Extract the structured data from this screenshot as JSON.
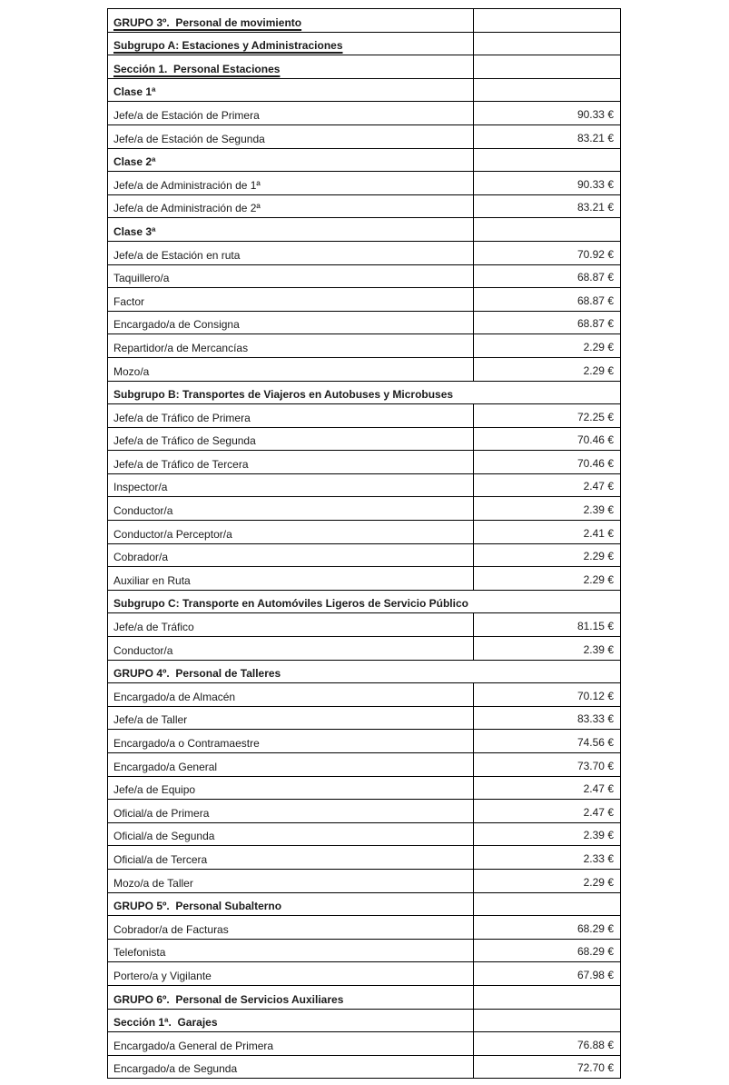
{
  "page": {
    "background_color": "#ffffff",
    "border_color": "#000000",
    "currency_symbol": "€"
  },
  "table": {
    "rows": [
      {
        "label": "GRUPO 3º.  Personal de movimiento",
        "value": "",
        "bold": true,
        "underline": true,
        "span_full": false
      },
      {
        "label": "Subgrupo A: Estaciones y Administraciones",
        "value": "",
        "bold": true,
        "underline": true,
        "span_full": false
      },
      {
        "label": "Sección 1.  Personal Estaciones",
        "value": "",
        "bold": true,
        "underline": true,
        "span_full": false
      },
      {
        "label": "Clase 1ª",
        "value": "",
        "bold": true,
        "underline": false,
        "span_full": false
      },
      {
        "label": "Jefe/a de Estación de Primera",
        "value": "90.33 €",
        "bold": false,
        "underline": false,
        "span_full": false
      },
      {
        "label": "Jefe/a de Estación de Segunda",
        "value": "83.21 €",
        "bold": false,
        "underline": false,
        "span_full": false
      },
      {
        "label": "Clase 2ª",
        "value": "",
        "bold": true,
        "underline": false,
        "span_full": false
      },
      {
        "label": "Jefe/a de Administración de 1ª",
        "value": "90.33 €",
        "bold": false,
        "underline": false,
        "span_full": false
      },
      {
        "label": "Jefe/a de Administración de 2ª",
        "value": "83.21 €",
        "bold": false,
        "underline": false,
        "span_full": false
      },
      {
        "label": "Clase 3ª",
        "value": "",
        "bold": true,
        "underline": false,
        "span_full": false
      },
      {
        "label": "Jefe/a de Estación en ruta",
        "value": "70.92 €",
        "bold": false,
        "underline": false,
        "span_full": false
      },
      {
        "label": "Taquillero/a",
        "value": "68.87 €",
        "bold": false,
        "underline": false,
        "span_full": false
      },
      {
        "label": "Factor",
        "value": "68.87 €",
        "bold": false,
        "underline": false,
        "span_full": false
      },
      {
        "label": "Encargado/a de Consigna",
        "value": "68.87 €",
        "bold": false,
        "underline": false,
        "span_full": false
      },
      {
        "label": "Repartidor/a de Mercancías",
        "value": "2.29 €",
        "bold": false,
        "underline": false,
        "span_full": false
      },
      {
        "label": "Mozo/a",
        "value": "2.29 €",
        "bold": false,
        "underline": false,
        "span_full": false
      },
      {
        "label": "Subgrupo B: Transportes de Viajeros en Autobuses y Microbuses",
        "value": "",
        "bold": true,
        "underline": false,
        "span_full": true
      },
      {
        "label": "Jefe/a de Tráfico de Primera",
        "value": "72.25 €",
        "bold": false,
        "underline": false,
        "span_full": false
      },
      {
        "label": "Jefe/a de Tráfico de Segunda",
        "value": "70.46 €",
        "bold": false,
        "underline": false,
        "span_full": false
      },
      {
        "label": "Jefe/a de Tráfico de Tercera",
        "value": "70.46 €",
        "bold": false,
        "underline": false,
        "span_full": false
      },
      {
        "label": "Inspector/a",
        "value": "2.47 €",
        "bold": false,
        "underline": false,
        "span_full": false
      },
      {
        "label": "Conductor/a",
        "value": "2.39 €",
        "bold": false,
        "underline": false,
        "span_full": false
      },
      {
        "label": "Conductor/a Perceptor/a",
        "value": "2.41 €",
        "bold": false,
        "underline": false,
        "span_full": false
      },
      {
        "label": "Cobrador/a",
        "value": "2.29 €",
        "bold": false,
        "underline": false,
        "span_full": false
      },
      {
        "label": "Auxiliar en Ruta",
        "value": "2.29 €",
        "bold": false,
        "underline": false,
        "span_full": false
      },
      {
        "label": "Subgrupo C: Transporte en Automóviles Ligeros de Servicio Público",
        "value": "",
        "bold": true,
        "underline": false,
        "span_full": true
      },
      {
        "label": "Jefe/a de Tráfico",
        "value": "81.15 €",
        "bold": false,
        "underline": false,
        "span_full": false
      },
      {
        "label": "Conductor/a",
        "value": "2.39 €",
        "bold": false,
        "underline": false,
        "span_full": false
      },
      {
        "label": "GRUPO 4º.  Personal de Talleres",
        "value": "",
        "bold": true,
        "underline": false,
        "span_full": true
      },
      {
        "label": "Encargado/a de Almacén",
        "value": "70.12 €",
        "bold": false,
        "underline": false,
        "span_full": false
      },
      {
        "label": "Jefe/a de Taller",
        "value": "83.33 €",
        "bold": false,
        "underline": false,
        "span_full": false
      },
      {
        "label": "Encargado/a o Contramaestre",
        "value": "74.56 €",
        "bold": false,
        "underline": false,
        "span_full": false
      },
      {
        "label": "Encargado/a General",
        "value": "73.70 €",
        "bold": false,
        "underline": false,
        "span_full": false
      },
      {
        "label": "Jefe/a de Equipo",
        "value": "2.47 €",
        "bold": false,
        "underline": false,
        "span_full": false
      },
      {
        "label": "Oficial/a de Primera",
        "value": "2.47 €",
        "bold": false,
        "underline": false,
        "span_full": false
      },
      {
        "label": "Oficial/a de Segunda",
        "value": "2.39 €",
        "bold": false,
        "underline": false,
        "span_full": false
      },
      {
        "label": "Oficial/a de Tercera",
        "value": "2.33 €",
        "bold": false,
        "underline": false,
        "span_full": false
      },
      {
        "label": "Mozo/a de Taller",
        "value": "2.29 €",
        "bold": false,
        "underline": false,
        "span_full": false
      },
      {
        "label": "GRUPO 5º.  Personal Subalterno",
        "value": "",
        "bold": true,
        "underline": false,
        "span_full": false
      },
      {
        "label": "Cobrador/a de Facturas",
        "value": "68.29 €",
        "bold": false,
        "underline": false,
        "span_full": false
      },
      {
        "label": "Telefonista",
        "value": "68.29 €",
        "bold": false,
        "underline": false,
        "span_full": false
      },
      {
        "label": "Portero/a y Vigilante",
        "value": "67.98 €",
        "bold": false,
        "underline": false,
        "span_full": false
      },
      {
        "label": "GRUPO 6º.  Personal de Servicios Auxiliares",
        "value": "",
        "bold": true,
        "underline": false,
        "span_full": false
      },
      {
        "label": "Sección 1ª.  Garajes",
        "value": "",
        "bold": true,
        "underline": false,
        "span_full": false
      },
      {
        "label": "Encargado/a General de Primera",
        "value": "76.88 €",
        "bold": false,
        "underline": false,
        "span_full": false
      },
      {
        "label": "Encargado/a de Segunda",
        "value": "72.70 €",
        "bold": false,
        "underline": false,
        "span_full": false
      }
    ]
  }
}
